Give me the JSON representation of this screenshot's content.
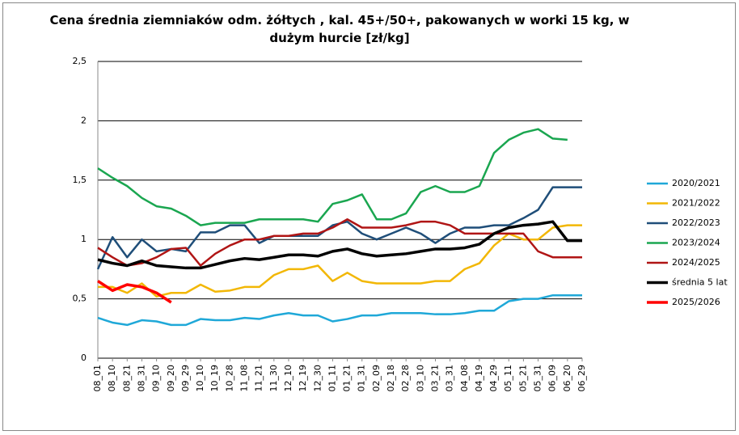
{
  "chart_data": {
    "type": "line",
    "title": "Cena średnia ziemniaków odm. żółtych , kal. 45+/50+, pakowanych w worki 15 kg, w dużym hurcie [zł/kg]",
    "categories": [
      "08_01",
      "08_10",
      "08_21",
      "08_31",
      "09_10",
      "09_20",
      "09_29",
      "10_10",
      "10_19",
      "10_28",
      "11_08",
      "11_21",
      "11_30",
      "12_10",
      "12_19",
      "12_30",
      "01_11",
      "01_21",
      "01_31",
      "02_09",
      "02_18",
      "02_28",
      "03_10",
      "03_21",
      "03_31",
      "04_08",
      "04_19",
      "04_29",
      "05_11",
      "05_21",
      "05_31",
      "06_09",
      "06_20",
      "06_29"
    ],
    "ylim": [
      0,
      2.5
    ],
    "yticks": [
      0,
      {
        "value": 0.5,
        "label": "0,5"
      },
      1,
      {
        "value": 1.5,
        "label": "1,5"
      },
      2,
      {
        "value": 2.5,
        "label": "2,5"
      }
    ],
    "grid": true,
    "legend": "right",
    "series": [
      {
        "name": "2020/2021",
        "color": "#1fa8d8",
        "width": 2.5,
        "values": [
          0.34,
          0.3,
          0.28,
          0.32,
          0.31,
          0.28,
          0.28,
          0.33,
          0.32,
          0.32,
          0.34,
          0.33,
          0.36,
          0.38,
          0.36,
          0.36,
          0.31,
          0.33,
          0.36,
          0.36,
          0.38,
          0.38,
          0.38,
          0.37,
          0.37,
          0.38,
          0.4,
          0.4,
          0.48,
          0.5,
          0.5,
          0.53,
          0.53,
          0.53
        ]
      },
      {
        "name": "2021/2022",
        "color": "#f2b705",
        "width": 2.5,
        "values": [
          0.6,
          0.6,
          0.55,
          0.63,
          0.52,
          0.55,
          0.55,
          0.62,
          0.56,
          0.57,
          0.6,
          0.6,
          0.7,
          0.75,
          0.75,
          0.78,
          0.65,
          0.72,
          0.65,
          0.63,
          0.63,
          0.63,
          0.63,
          0.65,
          0.65,
          0.75,
          0.8,
          0.95,
          1.05,
          1.0,
          1.0,
          1.1,
          1.12,
          1.12
        ]
      },
      {
        "name": "2022/2023",
        "color": "#1f4e79",
        "width": 2.5,
        "values": [
          0.75,
          1.02,
          0.85,
          1.0,
          0.9,
          0.92,
          0.9,
          1.06,
          1.06,
          1.12,
          1.12,
          0.97,
          1.03,
          1.03,
          1.03,
          1.03,
          1.12,
          1.15,
          1.05,
          1.0,
          1.05,
          1.1,
          1.05,
          0.97,
          1.05,
          1.1,
          1.1,
          1.12,
          1.12,
          1.18,
          1.25,
          1.44,
          1.44,
          1.44
        ]
      },
      {
        "name": "2023/2024",
        "color": "#1aa650",
        "width": 2.5,
        "values": [
          1.6,
          1.52,
          1.45,
          1.35,
          1.28,
          1.26,
          1.2,
          1.12,
          1.14,
          1.14,
          1.14,
          1.17,
          1.17,
          1.17,
          1.17,
          1.15,
          1.3,
          1.33,
          1.38,
          1.17,
          1.17,
          1.22,
          1.4,
          1.45,
          1.4,
          1.4,
          1.45,
          1.73,
          1.84,
          1.9,
          1.93,
          1.85,
          1.84,
          null
        ]
      },
      {
        "name": "2024/2025",
        "color": "#b01515",
        "width": 2.5,
        "values": [
          0.93,
          0.85,
          0.78,
          0.8,
          0.85,
          0.92,
          0.93,
          0.78,
          0.88,
          0.95,
          1.0,
          1.0,
          1.03,
          1.03,
          1.05,
          1.05,
          1.1,
          1.17,
          1.1,
          1.1,
          1.1,
          1.12,
          1.15,
          1.15,
          1.12,
          1.05,
          1.05,
          1.05,
          1.05,
          1.05,
          0.9,
          0.85,
          0.85,
          0.85
        ]
      },
      {
        "name": "średnia 5 lat",
        "color": "#000000",
        "width": 3.5,
        "values": [
          0.83,
          0.8,
          0.78,
          0.82,
          0.78,
          0.77,
          0.76,
          0.76,
          0.79,
          0.82,
          0.84,
          0.83,
          0.85,
          0.87,
          0.87,
          0.86,
          0.9,
          0.92,
          0.88,
          0.86,
          0.87,
          0.88,
          0.9,
          0.92,
          0.92,
          0.93,
          0.96,
          1.05,
          1.1,
          1.12,
          1.13,
          1.15,
          0.99,
          0.99
        ]
      },
      {
        "name": "2025/2026",
        "color": "#ff0000",
        "width": 3.5,
        "values": [
          0.65,
          0.57,
          0.62,
          0.6,
          0.55,
          0.47,
          null,
          null,
          null,
          null,
          null,
          null,
          null,
          null,
          null,
          null,
          null,
          null,
          null,
          null,
          null,
          null,
          null,
          null,
          null,
          null,
          null,
          null,
          null,
          null,
          null,
          null,
          null,
          null
        ]
      }
    ]
  }
}
